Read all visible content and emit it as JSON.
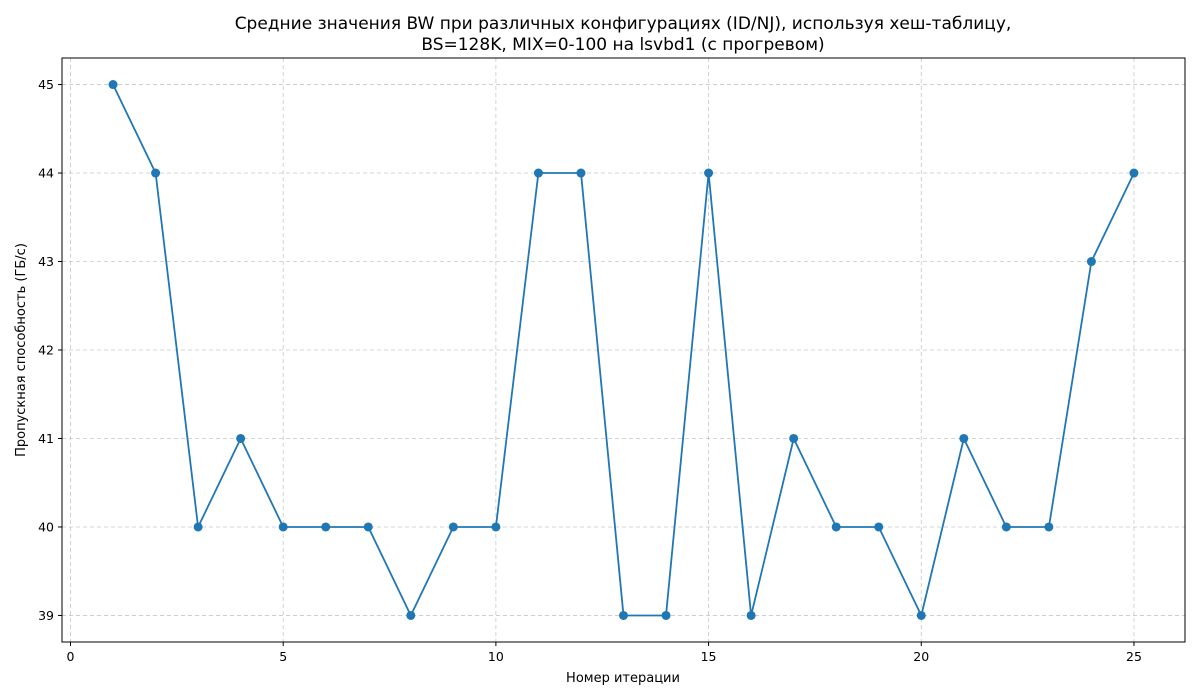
{
  "chart_data": {
    "type": "line",
    "title": [
      "Средние значения BW при различных конфигурациях (ID/NJ), используя хеш-таблицу,",
      "BS=128K, MIX=0-100 на lsvbd1 (с прогревом)"
    ],
    "xlabel": "Номер итерации",
    "ylabel": "Пропускная способность (ГБ/с)",
    "xlim": [
      -0.2,
      26.2
    ],
    "ylim": [
      38.7,
      45.3
    ],
    "xticks": [
      0,
      5,
      10,
      15,
      20,
      25
    ],
    "yticks": [
      39,
      40,
      41,
      42,
      43,
      44,
      45
    ],
    "grid": true,
    "series": [
      {
        "color": "#1f77b4",
        "x": [
          1,
          2,
          3,
          4,
          5,
          6,
          7,
          8,
          9,
          10,
          11,
          12,
          13,
          14,
          15,
          16,
          17,
          18,
          19,
          20,
          21,
          22,
          23,
          24,
          25
        ],
        "y": [
          45,
          44,
          40,
          41,
          40,
          40,
          40,
          39,
          40,
          40,
          44,
          44,
          39,
          39,
          44,
          39,
          41,
          40,
          40,
          39,
          41,
          40,
          40,
          43,
          44
        ]
      }
    ]
  }
}
